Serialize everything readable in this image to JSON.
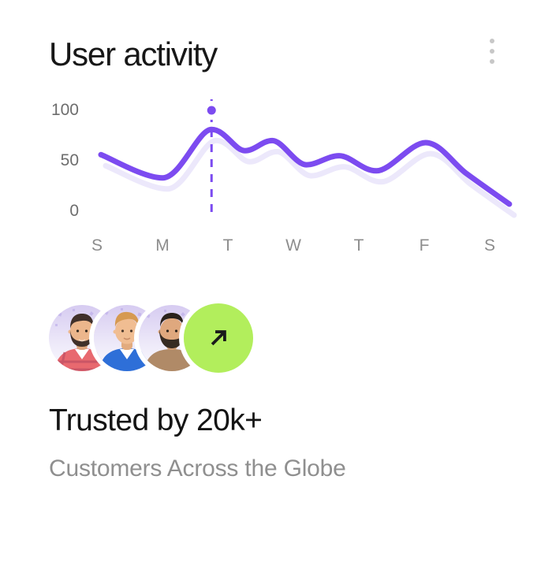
{
  "header": {
    "title": "User activity",
    "menu_icon": "kebab-vertical-icon"
  },
  "chart_data": {
    "type": "line",
    "title": "User activity",
    "categories": [
      "S",
      "M",
      "T",
      "W",
      "T",
      "F",
      "S"
    ],
    "y_ticks": [
      "100",
      "50",
      "0"
    ],
    "ylim": [
      0,
      100
    ],
    "grid": false,
    "legend": false,
    "x_units": "weekdays, S=0 through S=6",
    "series": [
      {
        "name": "User activity",
        "color": "#7c4bf0",
        "values_at_labels": [
          55,
          33,
          78,
          50,
          48,
          68,
          12
        ],
        "points": [
          {
            "x": 0.06,
            "v": 56
          },
          {
            "x": 1.0,
            "v": 33
          },
          {
            "x": 1.75,
            "v": 81
          },
          {
            "x": 2.26,
            "v": 60
          },
          {
            "x": 2.68,
            "v": 70
          },
          {
            "x": 3.2,
            "v": 46
          },
          {
            "x": 3.7,
            "v": 55
          },
          {
            "x": 4.27,
            "v": 40
          },
          {
            "x": 5.02,
            "v": 68
          },
          {
            "x": 5.65,
            "v": 37
          },
          {
            "x": 6.3,
            "v": 7
          }
        ]
      },
      {
        "name": "shadow echo of main line",
        "color": "#ece8fb",
        "offset_copy_of_main": true
      }
    ],
    "marker": {
      "x": 1.75,
      "v": 100,
      "style": "purple dot with white halo atop a dashed vertical line",
      "dot_color": "#7c4bf0"
    }
  },
  "avatar_group": {
    "avatars": [
      {
        "icon": "customer-avatar-1"
      },
      {
        "icon": "customer-avatar-2"
      },
      {
        "icon": "customer-avatar-3"
      }
    ],
    "cta_icon": "arrow-up-right-icon"
  },
  "footer": {
    "heading": "Trusted by 20k+",
    "subheading": "Customers Across the Globe"
  },
  "colors": {
    "accent_purple": "#7c4bf0",
    "line_shadow": "#ece8fb",
    "lime_green": "#b2ee5c",
    "arrow_dark": "#1b1b1b",
    "title_text": "#171717",
    "heading_text": "#141414",
    "subheading_text": "#8f8f8f",
    "y_tick_text": "#6d6d6d",
    "x_tick_text": "#8d8d8d",
    "kebab_dots": "#c7c7c7",
    "card_background": "#ffffff"
  }
}
